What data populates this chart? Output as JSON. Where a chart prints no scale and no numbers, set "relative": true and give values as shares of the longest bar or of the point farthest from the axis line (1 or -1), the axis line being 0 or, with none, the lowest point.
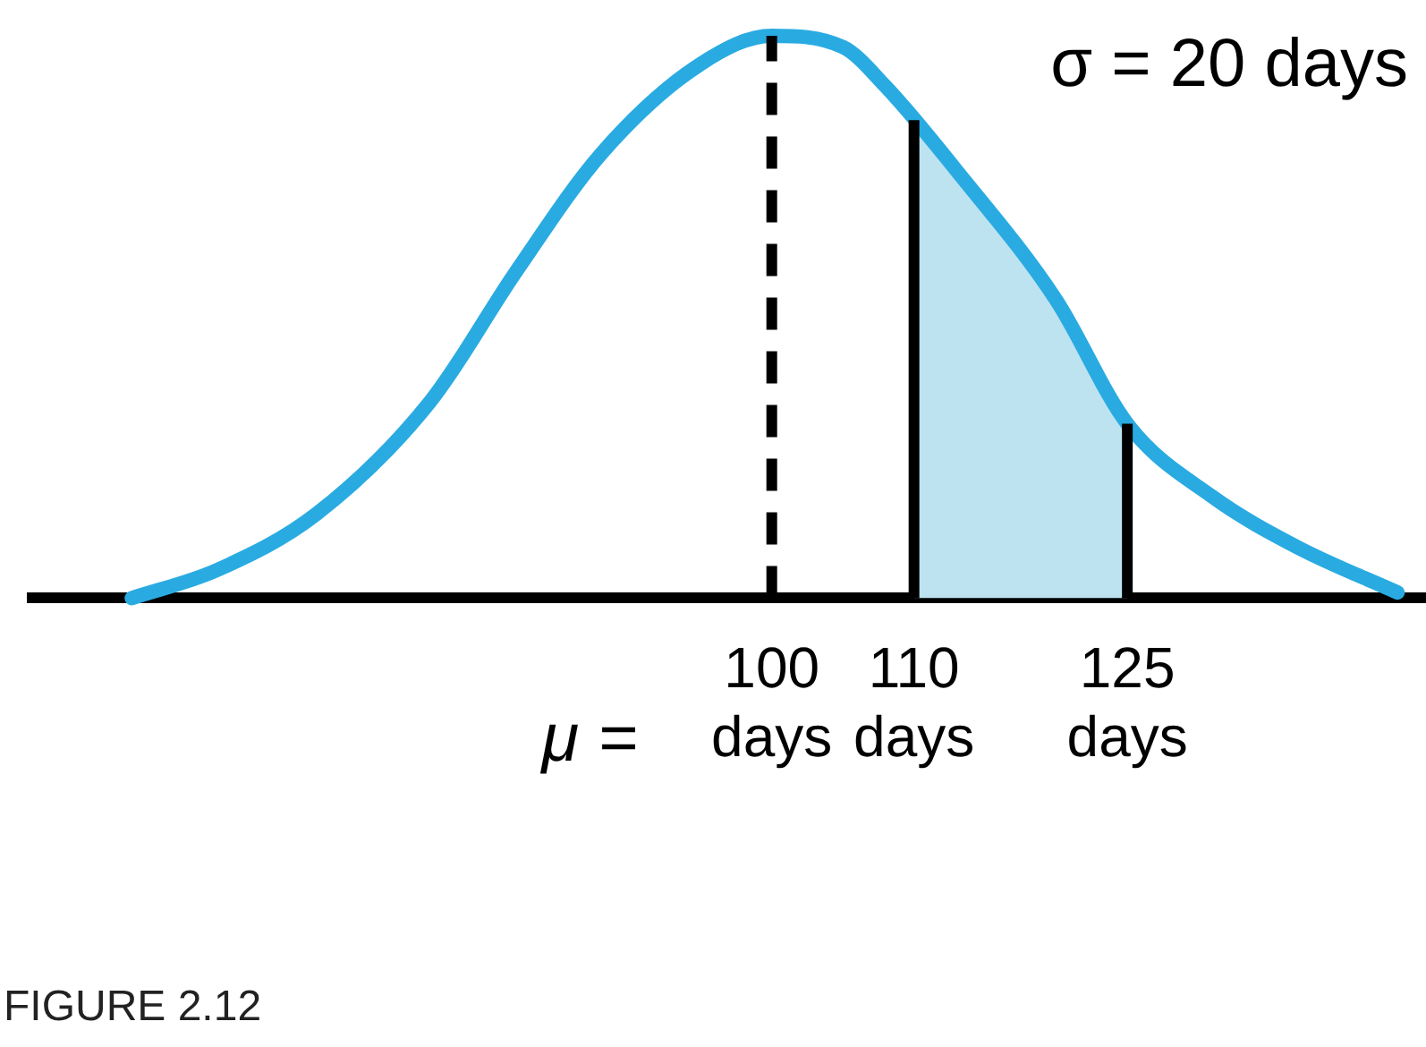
{
  "chart_data": {
    "type": "line",
    "relative": true,
    "x": [
      55,
      61,
      68,
      76,
      82,
      88,
      95,
      100,
      105,
      108,
      113,
      120,
      125,
      131,
      137,
      144
    ],
    "series": [
      {
        "color": "#29abe2",
        "values": [
          0,
          0.05,
          0.15,
          0.35,
          0.58,
          0.79,
          0.95,
          1,
          0.98,
          0.91,
          0.76,
          0.53,
          0.31,
          0.18,
          0.09,
          0.01
        ]
      },
      {
        "type": "area",
        "color": "#bde3f0",
        "x": [
          110,
          113,
          116,
          120,
          123,
          125
        ],
        "values": [
          0.86,
          0.76,
          0.65,
          0.53,
          0.4,
          0.31
        ]
      }
    ],
    "xlim": [
      48,
      146
    ],
    "xticks": [
      {
        "value": 100,
        "label": "100 days"
      },
      {
        "value": 110,
        "label": "110 days"
      },
      {
        "value": 125,
        "label": "125 days"
      }
    ],
    "ref_lines": [
      {
        "axis": "x",
        "value": 100,
        "line_style": "dashed",
        "color": "#000000"
      },
      {
        "axis": "x",
        "value": 110,
        "color": "#000000"
      },
      {
        "axis": "x",
        "value": 125,
        "color": "#000000"
      }
    ],
    "annotations": [
      "σ = 20 days",
      "μ =",
      "FIGURE 2.12"
    ],
    "grid": false,
    "legend": false,
    "marker": "none",
    "line_style": "solid"
  }
}
